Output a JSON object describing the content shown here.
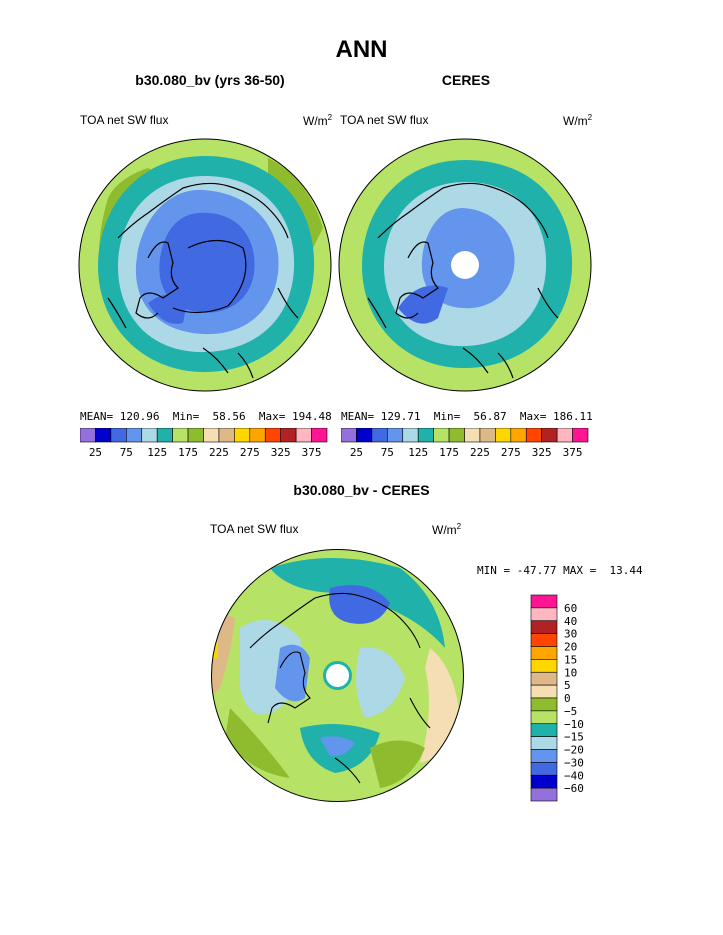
{
  "page_title": "ANN",
  "panels": [
    {
      "title": "b30.080_bv (yrs 36-50)",
      "variable": "TOA net SW flux",
      "units": "W/m",
      "units_sup": "2",
      "stats": {
        "mean_label": "MEAN=",
        "mean": "120.96",
        "min_label": "Min=",
        "min": "58.56",
        "max_label": "Max=",
        "max": "194.48"
      }
    },
    {
      "title": "CERES",
      "variable": "TOA net SW flux",
      "units": "W/m",
      "units_sup": "2",
      "stats": {
        "mean_label": "MEAN=",
        "mean": "129.71",
        "min_label": "Min=",
        "min": "56.87",
        "max_label": "Max=",
        "max": "186.11"
      }
    }
  ],
  "colorbar_abs": {
    "colors": [
      "#9370db",
      "#0000cd",
      "#4169e1",
      "#6495ed",
      "#add8e6",
      "#20b2aa",
      "#b6e366",
      "#8fbc2f",
      "#f5deb3",
      "#deb887",
      "#ffd700",
      "#ffa500",
      "#ff4500",
      "#b22222",
      "#ffb6c1",
      "#ff1493"
    ],
    "labels": [
      "25",
      "75",
      "125",
      "175",
      "225",
      "275",
      "325",
      "375"
    ]
  },
  "diff_panel": {
    "title": "b30.080_bv - CERES",
    "variable": "TOA net SW flux",
    "units": "W/m",
    "units_sup": "2",
    "minmax": "MIN = -47.77 MAX =  13.44"
  },
  "colorbar_diff": {
    "colors": [
      "#ff1493",
      "#ffb6c1",
      "#b22222",
      "#ff4500",
      "#ffa500",
      "#ffd700",
      "#deb887",
      "#f5deb3",
      "#8fbc2f",
      "#b6e366",
      "#20b2aa",
      "#add8e6",
      "#6495ed",
      "#4169e1",
      "#0000cd",
      "#9370db"
    ],
    "labels": [
      "60",
      "40",
      "30",
      "20",
      "15",
      "10",
      "5",
      "0",
      "−5",
      "−10",
      "−15",
      "−20",
      "−30",
      "−40",
      "−60"
    ]
  }
}
